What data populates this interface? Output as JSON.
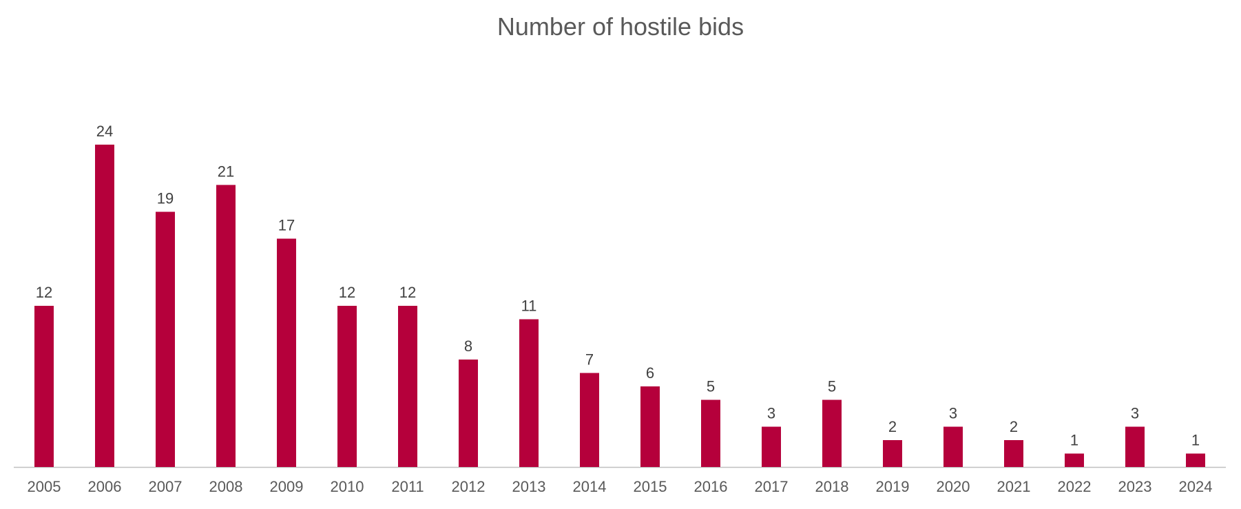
{
  "chart_data": {
    "type": "bar",
    "title": "Number of hostile bids",
    "categories": [
      "2005",
      "2006",
      "2007",
      "2008",
      "2009",
      "2010",
      "2011",
      "2012",
      "2013",
      "2014",
      "2015",
      "2016",
      "2017",
      "2018",
      "2019",
      "2020",
      "2021",
      "2022",
      "2023",
      "2024"
    ],
    "values": [
      12,
      24,
      19,
      21,
      17,
      12,
      12,
      8,
      11,
      7,
      6,
      5,
      3,
      5,
      2,
      3,
      2,
      1,
      3,
      1
    ],
    "xlabel": "",
    "ylabel": "",
    "ylim": [
      0,
      24
    ],
    "grid": false,
    "legend": "none",
    "data_labels": true,
    "bar_color": "#b5003b",
    "axis_color": "#bfbfbf"
  }
}
